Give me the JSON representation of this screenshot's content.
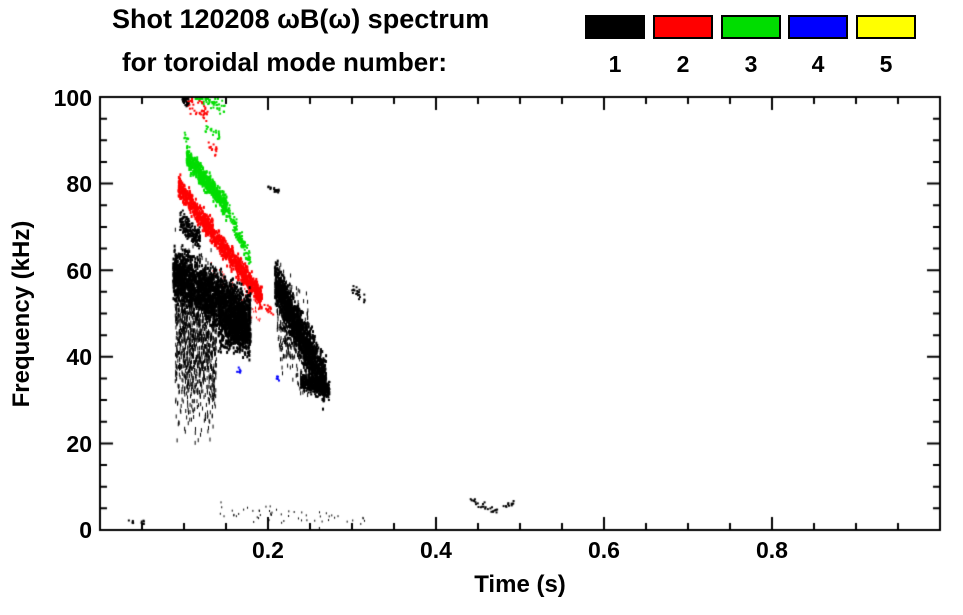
{
  "chart_data": {
    "type": "scatter",
    "title": "Shot 120208 ωB(ω) spectrum",
    "subtitle": "for toroidal mode number:",
    "xlabel": "Time (s)",
    "ylabel": "Frequency (kHz)",
    "xlim": [
      0.0,
      1.0
    ],
    "ylim": [
      0,
      100
    ],
    "x_major_ticks": [
      0.2,
      0.4,
      0.6,
      0.8
    ],
    "x_minor_step": 0.05,
    "y_major_ticks": [
      0,
      20,
      40,
      60,
      80,
      100
    ],
    "y_minor_step": 5,
    "grid": false,
    "legend_position": "top-right",
    "legend": [
      {
        "mode": 1,
        "color": "#000000"
      },
      {
        "mode": 2,
        "color": "#ff0000"
      },
      {
        "mode": 3,
        "color": "#00dd00"
      },
      {
        "mode": 4,
        "color": "#0000ff"
      },
      {
        "mode": 5,
        "color": "#ffff00"
      }
    ],
    "clusters": [
      {
        "mode": 1,
        "t": [
          0.086,
          0.178
        ],
        "f": [
          59,
          48
        ],
        "spread": 6.5,
        "n": 2300,
        "w": 2,
        "h": 3,
        "seed": 11
      },
      {
        "mode": 1,
        "t": [
          0.089,
          0.138
        ],
        "f": [
          44,
          42
        ],
        "spread": 20,
        "n": 1100,
        "w": 1,
        "h": 4,
        "seed": 12
      },
      {
        "mode": 1,
        "t": [
          0.094,
          0.118
        ],
        "f": [
          71,
          67
        ],
        "spread": 2.5,
        "n": 200,
        "w": 2,
        "h": 2,
        "seed": 13
      },
      {
        "mode": 1,
        "t": [
          0.14,
          0.178
        ],
        "f": [
          47,
          44
        ],
        "spread": 5,
        "n": 500,
        "w": 2,
        "h": 3,
        "seed": 14
      },
      {
        "mode": 1,
        "t": [
          0.097,
          0.107
        ],
        "f": [
          100,
          98
        ],
        "spread": 2,
        "n": 25,
        "w": 2,
        "h": 2,
        "seed": 15
      },
      {
        "mode": 1,
        "t": [
          0.207,
          0.268
        ],
        "f": [
          57,
          33
        ],
        "spread": 5.5,
        "n": 1500,
        "w": 2,
        "h": 3,
        "seed": 16
      },
      {
        "mode": 1,
        "t": [
          0.21,
          0.25
        ],
        "f": [
          50,
          40
        ],
        "spread": 11,
        "n": 450,
        "w": 1,
        "h": 4,
        "seed": 17
      },
      {
        "mode": 1,
        "t": [
          0.238,
          0.272
        ],
        "f": [
          34,
          32
        ],
        "spread": 2,
        "n": 500,
        "w": 2,
        "h": 2,
        "seed": 18
      },
      {
        "mode": 1,
        "t": [
          0.033,
          0.052
        ],
        "f": [
          2,
          2
        ],
        "spread": 1.2,
        "n": 10,
        "w": 2,
        "h": 2,
        "seed": 19
      },
      {
        "mode": 1,
        "t": [
          0.142,
          0.315
        ],
        "f": [
          4,
          2
        ],
        "spread": 2,
        "n": 55,
        "w": 1,
        "h": 2,
        "seed": 20
      },
      {
        "mode": 1,
        "t": [
          0.44,
          0.467
        ],
        "f": [
          7,
          4
        ],
        "spread": 0.8,
        "n": 22,
        "w": 2,
        "h": 2,
        "seed": 21
      },
      {
        "mode": 1,
        "t": [
          0.467,
          0.492
        ],
        "f": [
          4,
          6
        ],
        "spread": 0.8,
        "n": 16,
        "w": 2,
        "h": 2,
        "seed": 22
      },
      {
        "mode": 1,
        "t": [
          0.199,
          0.212
        ],
        "f": [
          79,
          78
        ],
        "spread": 1,
        "n": 18,
        "w": 2,
        "h": 2,
        "seed": 23
      },
      {
        "mode": 1,
        "t": [
          0.298,
          0.314
        ],
        "f": [
          56,
          53
        ],
        "spread": 1.5,
        "n": 20,
        "w": 2,
        "h": 2,
        "seed": 24
      },
      {
        "mode": 2,
        "t": [
          0.092,
          0.192
        ],
        "f": [
          79,
          53
        ],
        "spread": 2.8,
        "n": 1000,
        "w": 2,
        "h": 3,
        "seed": 31
      },
      {
        "mode": 2,
        "t": [
          0.099,
          0.127
        ],
        "f": [
          99,
          96
        ],
        "spread": 2.2,
        "n": 45,
        "w": 2,
        "h": 2,
        "seed": 32
      },
      {
        "mode": 2,
        "t": [
          0.128,
          0.138
        ],
        "f": [
          89,
          87
        ],
        "spread": 1.5,
        "n": 14,
        "w": 2,
        "h": 2,
        "seed": 33
      },
      {
        "mode": 2,
        "t": [
          0.13,
          0.19
        ],
        "f": [
          60,
          50
        ],
        "spread": 3,
        "n": 60,
        "w": 1,
        "h": 2,
        "seed": 34
      },
      {
        "mode": 2,
        "t": [
          0.194,
          0.205
        ],
        "f": [
          52,
          50
        ],
        "spread": 1.5,
        "n": 15,
        "w": 2,
        "h": 2,
        "seed": 35
      },
      {
        "mode": 3,
        "t": [
          0.102,
          0.15
        ],
        "f": [
          86,
          74
        ],
        "spread": 2.6,
        "n": 520,
        "w": 2,
        "h": 3,
        "seed": 41
      },
      {
        "mode": 3,
        "t": [
          0.15,
          0.178
        ],
        "f": [
          74,
          62
        ],
        "spread": 2.2,
        "n": 130,
        "w": 2,
        "h": 2,
        "seed": 42
      },
      {
        "mode": 3,
        "t": [
          0.112,
          0.148
        ],
        "f": [
          100,
          97
        ],
        "spread": 2,
        "n": 50,
        "w": 2,
        "h": 2,
        "seed": 43
      },
      {
        "mode": 3,
        "t": [
          0.122,
          0.142
        ],
        "f": [
          93,
          91
        ],
        "spread": 1.5,
        "n": 18,
        "w": 2,
        "h": 2,
        "seed": 44
      },
      {
        "mode": 3,
        "t": [
          0.099,
          0.106
        ],
        "f": [
          91,
          89
        ],
        "spread": 1.5,
        "n": 10,
        "w": 2,
        "h": 2,
        "seed": 45
      },
      {
        "mode": 4,
        "t": [
          0.162,
          0.167
        ],
        "f": [
          37,
          36
        ],
        "spread": 1,
        "n": 6,
        "w": 2,
        "h": 2,
        "seed": 51
      },
      {
        "mode": 4,
        "t": [
          0.209,
          0.214
        ],
        "f": [
          35,
          34
        ],
        "spread": 1,
        "n": 5,
        "w": 2,
        "h": 2,
        "seed": 52
      }
    ]
  }
}
